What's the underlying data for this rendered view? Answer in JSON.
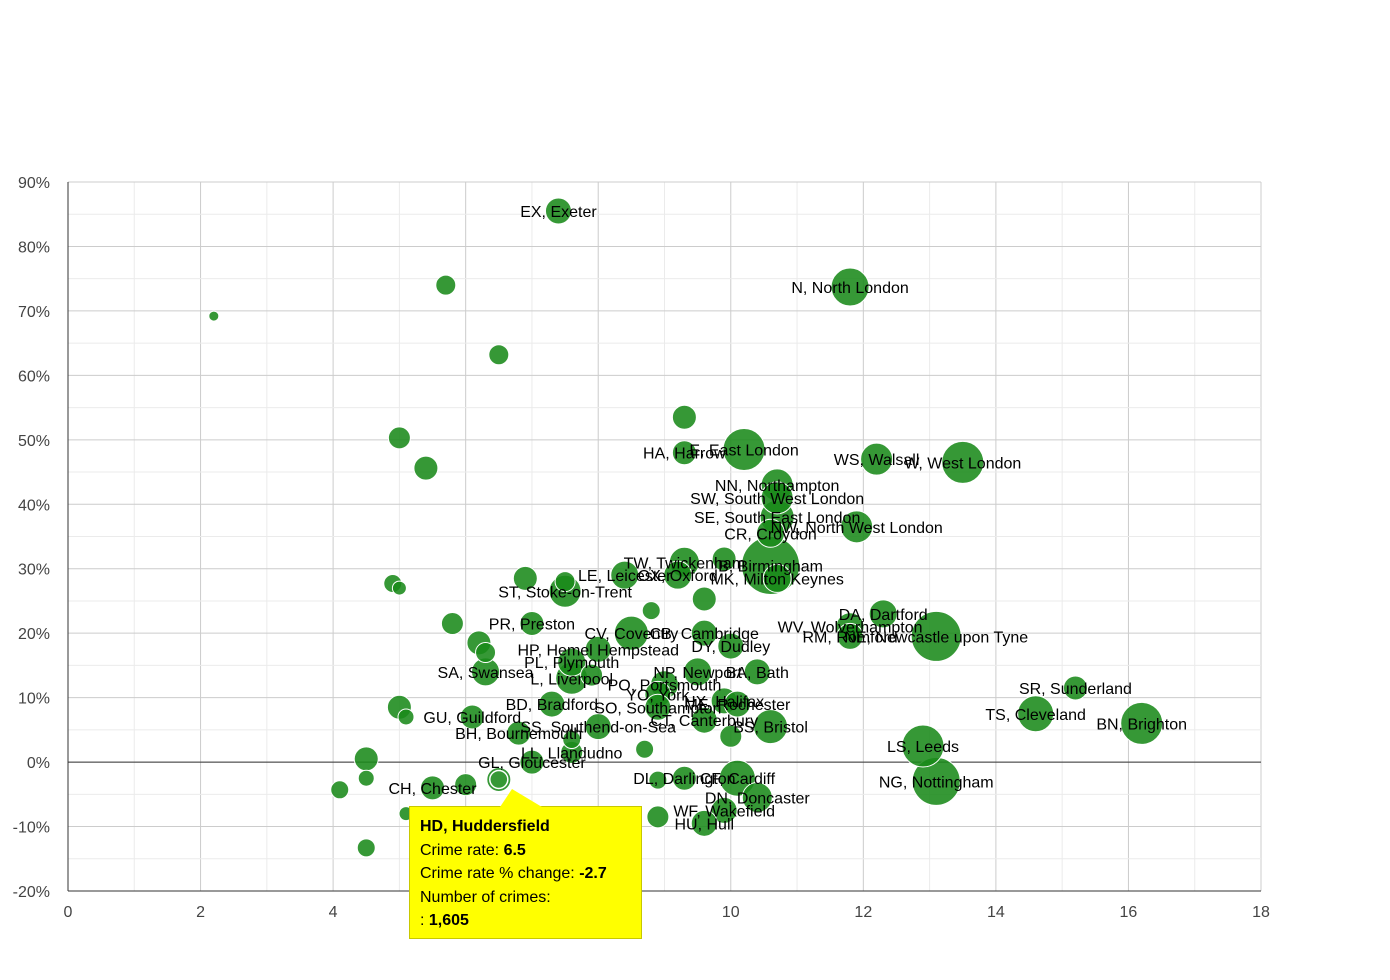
{
  "chart_data": {
    "type": "scatter",
    "bubble": true,
    "x_field": "Crime rate",
    "y_field": "Crime rate % change",
    "xlim": [
      0,
      18
    ],
    "ylim": [
      -20,
      90
    ],
    "x_ticks": [
      "0",
      "2",
      "4",
      "6",
      "8",
      "10",
      "12",
      "14",
      "16",
      "18"
    ],
    "y_ticks": [
      "-20%",
      "-10%",
      "0%",
      "10%",
      "20%",
      "30%",
      "40%",
      "50%",
      "60%",
      "70%",
      "80%",
      "90%"
    ],
    "series_color": "#1a8a1a",
    "points": [
      {
        "label": "EX, Exeter",
        "x": 7.4,
        "y": 85.5,
        "r": 13
      },
      {
        "label": "",
        "x": 5.7,
        "y": 74.0,
        "r": 10
      },
      {
        "label": "",
        "x": 2.2,
        "y": 69.2,
        "r": 5
      },
      {
        "label": "",
        "x": 6.5,
        "y": 63.2,
        "r": 10
      },
      {
        "label": "N, North London",
        "x": 11.8,
        "y": 73.7,
        "r": 19
      },
      {
        "label": "",
        "x": 9.3,
        "y": 53.5,
        "r": 12
      },
      {
        "label": "",
        "x": 5.0,
        "y": 50.3,
        "r": 11
      },
      {
        "label": "",
        "x": 5.4,
        "y": 45.6,
        "r": 12
      },
      {
        "label": "HA, Harrow",
        "x": 9.3,
        "y": 48.0,
        "r": 12
      },
      {
        "label": "E, East London",
        "x": 10.2,
        "y": 48.5,
        "r": 21
      },
      {
        "label": "WS, Walsall",
        "x": 12.2,
        "y": 47.0,
        "r": 16
      },
      {
        "label": "W, West London",
        "x": 13.5,
        "y": 46.5,
        "r": 21
      },
      {
        "label": "NN, Northampton",
        "x": 10.7,
        "y": 43.0,
        "r": 16
      },
      {
        "label": "SW, South West London",
        "x": 10.7,
        "y": 41.0,
        "r": 16
      },
      {
        "label": "SE, South East London",
        "x": 10.7,
        "y": 38.0,
        "r": 17
      },
      {
        "label": "NW, North West London",
        "x": 11.9,
        "y": 36.5,
        "r": 16
      },
      {
        "label": "CR, Croydon",
        "x": 10.6,
        "y": 35.5,
        "r": 14
      },
      {
        "label": "TW, Twickenham",
        "x": 9.3,
        "y": 31.0,
        "r": 15
      },
      {
        "label": "B, Birmingham",
        "x": 10.6,
        "y": 30.5,
        "r": 29
      },
      {
        "label": "",
        "x": 9.9,
        "y": 31.5,
        "r": 12
      },
      {
        "label": "MK, Milton Keynes",
        "x": 10.7,
        "y": 28.5,
        "r": 14
      },
      {
        "label": "OX, Oxford",
        "x": 9.2,
        "y": 29.0,
        "r": 14
      },
      {
        "label": "LE, Leicester",
        "x": 8.4,
        "y": 29.0,
        "r": 14
      },
      {
        "label": "ST, Stoke-on-Trent",
        "x": 7.5,
        "y": 26.5,
        "r": 16
      },
      {
        "label": "",
        "x": 6.9,
        "y": 28.5,
        "r": 12
      },
      {
        "label": "",
        "x": 7.5,
        "y": 28.0,
        "r": 10
      },
      {
        "label": "",
        "x": 4.9,
        "y": 27.7,
        "r": 9
      },
      {
        "label": "",
        "x": 5.0,
        "y": 27.0,
        "r": 7
      },
      {
        "label": "",
        "x": 9.6,
        "y": 25.3,
        "r": 12
      },
      {
        "label": "",
        "x": 8.8,
        "y": 23.5,
        "r": 9
      },
      {
        "label": "DA, Dartford",
        "x": 12.3,
        "y": 23.0,
        "r": 14
      },
      {
        "label": "WV, Wolverhampton",
        "x": 11.8,
        "y": 21.0,
        "r": 14
      },
      {
        "label": "RM, Romford",
        "x": 11.8,
        "y": 19.5,
        "r": 13
      },
      {
        "label": "NE, Newcastle upon Tyne",
        "x": 13.1,
        "y": 19.5,
        "r": 25
      },
      {
        "label": "PR, Preston",
        "x": 7.0,
        "y": 21.5,
        "r": 12
      },
      {
        "label": "",
        "x": 5.8,
        "y": 21.5,
        "r": 11
      },
      {
        "label": "CB, Cambridge",
        "x": 9.6,
        "y": 20.0,
        "r": 13
      },
      {
        "label": "CV, Coventry",
        "x": 8.5,
        "y": 20.0,
        "r": 17
      },
      {
        "label": "DY, Dudley",
        "x": 10.0,
        "y": 18.0,
        "r": 13
      },
      {
        "label": "",
        "x": 6.2,
        "y": 18.5,
        "r": 12
      },
      {
        "label": "",
        "x": 6.3,
        "y": 17.0,
        "r": 10
      },
      {
        "label": "HP, Hemel Hempstead",
        "x": 8.0,
        "y": 17.5,
        "r": 13
      },
      {
        "label": "PL, Plymouth",
        "x": 7.6,
        "y": 15.5,
        "r": 14
      },
      {
        "label": "NP, Newport",
        "x": 9.5,
        "y": 14.0,
        "r": 14
      },
      {
        "label": "BA, Bath",
        "x": 10.4,
        "y": 14.0,
        "r": 13
      },
      {
        "label": "SA, Swansea",
        "x": 6.3,
        "y": 14.0,
        "r": 14
      },
      {
        "label": "L, Liverpool",
        "x": 7.6,
        "y": 13.0,
        "r": 16
      },
      {
        "label": "",
        "x": 7.9,
        "y": 13.5,
        "r": 11
      },
      {
        "label": "PO, Portsmouth",
        "x": 9.0,
        "y": 12.0,
        "r": 14
      },
      {
        "label": "SR, Sunderland",
        "x": 15.2,
        "y": 11.5,
        "r": 12
      },
      {
        "label": "YO, York",
        "x": 8.9,
        "y": 10.5,
        "r": 13
      },
      {
        "label": "HX, Halifax",
        "x": 9.9,
        "y": 9.5,
        "r": 13
      },
      {
        "label": "ME, Rochester",
        "x": 10.1,
        "y": 9.0,
        "r": 13
      },
      {
        "label": "BD, Bradford",
        "x": 7.3,
        "y": 9.0,
        "r": 13
      },
      {
        "label": "SO, Southampton",
        "x": 8.9,
        "y": 8.5,
        "r": 13
      },
      {
        "label": "",
        "x": 5.0,
        "y": 8.5,
        "r": 12
      },
      {
        "label": "TS, Cleveland",
        "x": 14.6,
        "y": 7.5,
        "r": 18
      },
      {
        "label": "BN, Brighton",
        "x": 16.2,
        "y": 6.0,
        "r": 21
      },
      {
        "label": "CT, Canterbury",
        "x": 9.6,
        "y": 6.5,
        "r": 13
      },
      {
        "label": "BS, Bristol",
        "x": 10.6,
        "y": 5.5,
        "r": 17
      },
      {
        "label": "GU, Guildford",
        "x": 6.1,
        "y": 7.0,
        "r": 12
      },
      {
        "label": "",
        "x": 5.1,
        "y": 7.0,
        "r": 8
      },
      {
        "label": "SS, Southend-on-Sea",
        "x": 8.0,
        "y": 5.5,
        "r": 13
      },
      {
        "label": "BH, Bournemouth",
        "x": 6.8,
        "y": 4.5,
        "r": 12
      },
      {
        "label": "",
        "x": 7.6,
        "y": 3.5,
        "r": 9
      },
      {
        "label": "LS, Leeds",
        "x": 12.9,
        "y": 2.5,
        "r": 21
      },
      {
        "label": "",
        "x": 10.0,
        "y": 4.0,
        "r": 11
      },
      {
        "label": "",
        "x": 8.7,
        "y": 2.0,
        "r": 9
      },
      {
        "label": "LL, Llandudno",
        "x": 7.6,
        "y": 1.5,
        "r": 11
      },
      {
        "label": "",
        "x": 4.5,
        "y": 0.5,
        "r": 12
      },
      {
        "label": "GL, Gloucester",
        "x": 7.0,
        "y": 0.0,
        "r": 12
      },
      {
        "label": "HD, Huddersfield",
        "x": 6.5,
        "y": -2.7,
        "r": 12,
        "highlight": true
      },
      {
        "label": "",
        "x": 4.5,
        "y": -2.5,
        "r": 8
      },
      {
        "label": "CF, Cardiff",
        "x": 10.1,
        "y": -2.5,
        "r": 18
      },
      {
        "label": "NG, Nottingham",
        "x": 13.1,
        "y": -3.0,
        "r": 24
      },
      {
        "label": "DL, Darlington",
        "x": 9.3,
        "y": -2.5,
        "r": 12
      },
      {
        "label": "",
        "x": 8.9,
        "y": -2.8,
        "r": 9
      },
      {
        "label": "CH, Chester",
        "x": 5.5,
        "y": -4.0,
        "r": 12
      },
      {
        "label": "",
        "x": 6.0,
        "y": -3.5,
        "r": 11
      },
      {
        "label": "",
        "x": 4.1,
        "y": -4.3,
        "r": 9
      },
      {
        "label": "DN, Doncaster",
        "x": 10.4,
        "y": -5.5,
        "r": 15
      },
      {
        "label": "WF, Wakefield",
        "x": 9.9,
        "y": -7.5,
        "r": 13
      },
      {
        "label": "",
        "x": 8.9,
        "y": -8.5,
        "r": 11
      },
      {
        "label": "HU, Hull",
        "x": 9.6,
        "y": -9.5,
        "r": 13
      },
      {
        "label": "",
        "x": 5.1,
        "y": -8.0,
        "r": 7
      },
      {
        "label": "",
        "x": 4.5,
        "y": -13.3,
        "r": 9
      }
    ]
  },
  "tooltip": {
    "title": "HD, Huddersfield",
    "rate_label": "Crime rate:",
    "rate_value": "6.5",
    "change_label": "Crime rate % change:",
    "change_value": "-2.7",
    "count_label": "Number of crimes:",
    "count_prefix": ":",
    "count_value": "1,605"
  }
}
